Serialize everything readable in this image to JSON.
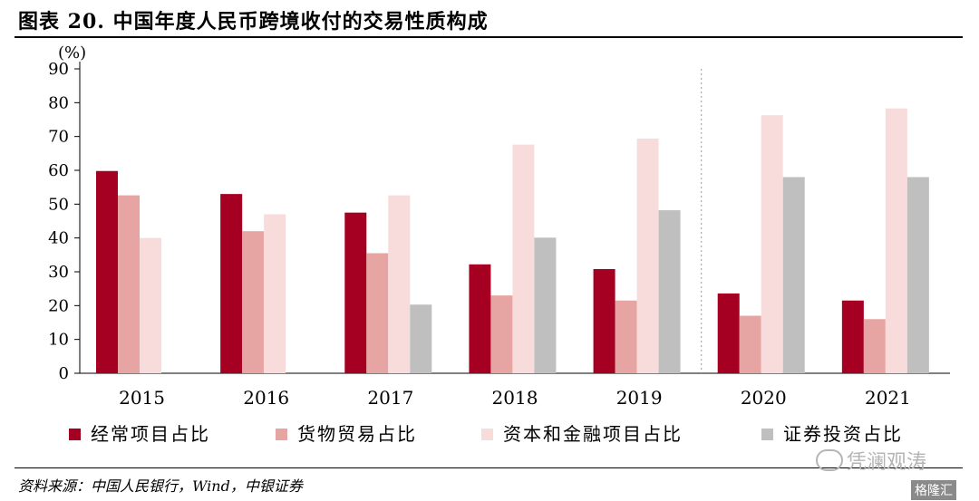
{
  "figure": {
    "title": "图表 20. 中国年度人民币跨境收付的交易性质构成",
    "source": "资料来源：中国人民银行，Wind，中银证券",
    "watermark": "凭澜观涛",
    "logo": "格隆汇"
  },
  "colors": {
    "goods": "#a50021",
    "trade": "#e6a5a2",
    "capital": "#f8dcdc",
    "securities": "#bfbfbf"
  },
  "chart_data": {
    "type": "bar",
    "categories": [
      "2015",
      "2016",
      "2017",
      "2018",
      "2019",
      "2020",
      "2021"
    ],
    "series": [
      {
        "name": "经常项目占比",
        "values": [
          59.8,
          53,
          47.5,
          32.2,
          30.8,
          23.6,
          21.5
        ]
      },
      {
        "name": "货物贸易占比",
        "values": [
          52.6,
          42,
          35.5,
          23,
          21.5,
          17,
          16
        ]
      },
      {
        "name": "资本和金融项目占比",
        "values": [
          40,
          47,
          52.6,
          67.6,
          69.4,
          76.3,
          78.3
        ]
      },
      {
        "name": "证券投资占比",
        "values": [
          null,
          null,
          20.3,
          40.1,
          48.2,
          58,
          58
        ]
      }
    ],
    "unit": "(%)",
    "ylim": [
      0,
      90
    ],
    "yticks": [
      "0",
      "10",
      "20",
      "30",
      "40",
      "50",
      "60",
      "70",
      "80",
      "90"
    ],
    "legend_position": "bottom",
    "divider_before_category": "2020"
  }
}
